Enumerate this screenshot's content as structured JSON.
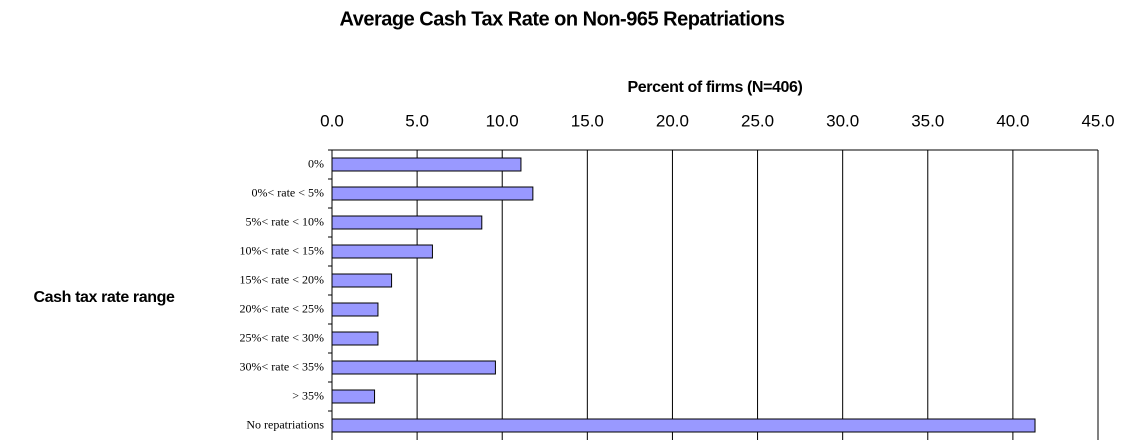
{
  "chart_data": {
    "type": "bar",
    "orientation": "horizontal",
    "title": "Average Cash Tax Rate on Non-965 Repatriations",
    "x_axis_label": "Percent of firms (N=406)",
    "y_axis_label": "Cash tax rate range",
    "categories": [
      "0%",
      "0%< rate < 5%",
      "5%< rate < 10%",
      "10%< rate < 15%",
      "15%< rate < 20%",
      "20%< rate < 25%",
      "25%< rate < 30%",
      "30%< rate < 35%",
      "> 35%",
      "No repatriations"
    ],
    "values": [
      11.1,
      11.8,
      8.8,
      5.9,
      3.5,
      2.7,
      2.7,
      9.6,
      2.5,
      41.3
    ],
    "color": "#9999ff",
    "xlim": [
      0,
      45
    ],
    "xticks": [
      {
        "value": 0,
        "label": "0.0"
      },
      {
        "value": 5,
        "label": "5.0"
      },
      {
        "value": 10,
        "label": "10.0"
      },
      {
        "value": 15,
        "label": "15.0"
      },
      {
        "value": 20,
        "label": "20.0"
      },
      {
        "value": 25,
        "label": "25.0"
      },
      {
        "value": 30,
        "label": "30.0"
      },
      {
        "value": 35,
        "label": "35.0"
      },
      {
        "value": 40,
        "label": "40.0"
      },
      {
        "value": 45,
        "label": "45.0"
      }
    ],
    "grid": true
  }
}
